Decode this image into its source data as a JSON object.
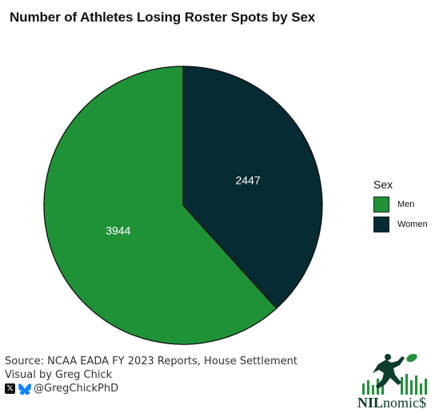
{
  "chart_data": {
    "type": "pie",
    "title": "Number of Athletes Losing Roster Spots by Sex",
    "legend_title": "Sex",
    "legend_position": "right",
    "slices": [
      {
        "label": "Men",
        "value": 3944,
        "color": "#1f9238"
      },
      {
        "label": "Women",
        "value": 2447,
        "color": "#062b33"
      }
    ]
  },
  "footer": {
    "source": "Source: NCAA EADA FY 2023 Reports, House Settlement",
    "visual": "Visual by Greg Chick",
    "handle": "@GregChickPhD"
  },
  "logo": {
    "name_bold": "NIL",
    "name_rest": "nomic$",
    "icon": "football-player-logo"
  }
}
